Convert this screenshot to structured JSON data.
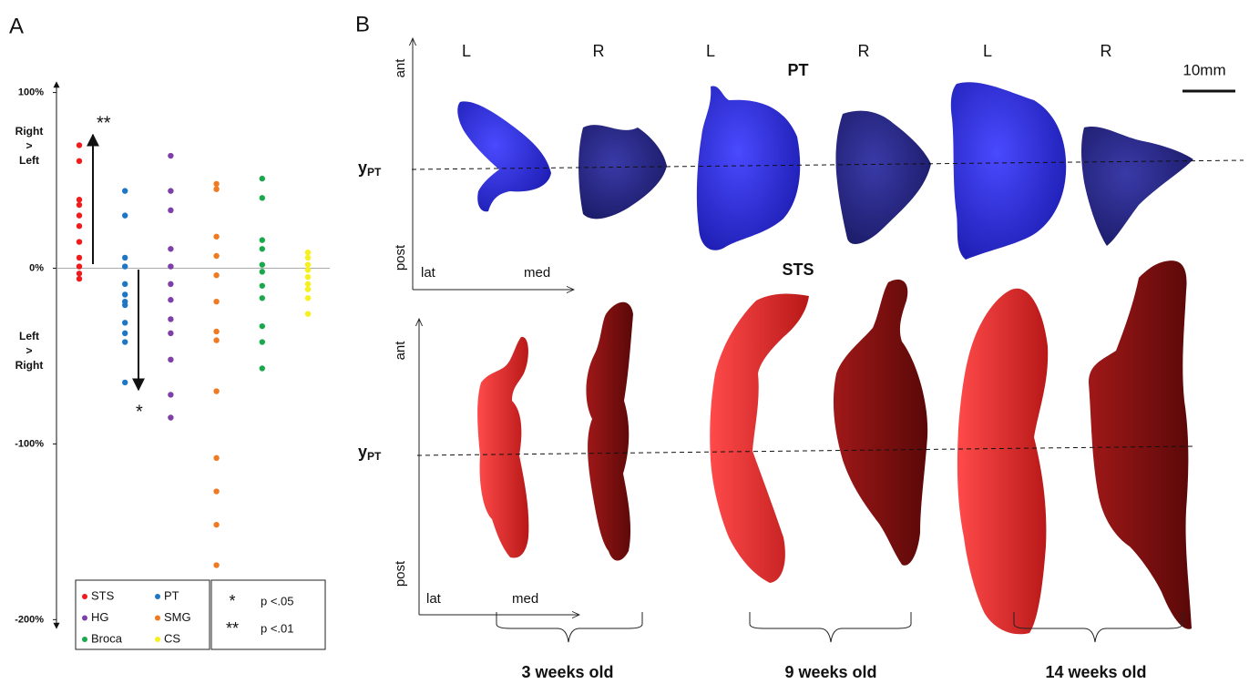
{
  "chart_data": {
    "type": "strip",
    "panel_label": "A",
    "ylim": [
      -205,
      106
    ],
    "yticks": [
      {
        "value": 100,
        "label": "100%"
      },
      {
        "value": 0,
        "label": "0%"
      },
      {
        "value": -100,
        "label": "-100%"
      },
      {
        "value": -200,
        "label": "-200%"
      }
    ],
    "upper_label": [
      "Right",
      ">",
      "Left"
    ],
    "lower_label": [
      "Left",
      ">",
      "Right"
    ],
    "annotations": [
      "**",
      "*"
    ],
    "series": [
      {
        "name": "STS",
        "color": "#ee1c1c",
        "values": [
          70,
          61,
          39,
          36,
          30,
          24,
          15,
          6,
          1,
          -3,
          -6
        ]
      },
      {
        "name": "PT",
        "color": "#1f77c4",
        "values": [
          44,
          30,
          6,
          1,
          -9,
          -15,
          -19,
          -21,
          -31,
          -37,
          -42,
          -65
        ]
      },
      {
        "name": "HG",
        "color": "#7e3fa8",
        "values": [
          64,
          44,
          33,
          11,
          1,
          -9,
          -18,
          -29,
          -37,
          -52,
          -72,
          -85
        ]
      },
      {
        "name": "SMG",
        "color": "#f07a22",
        "values": [
          48,
          45,
          18,
          7,
          -4,
          -19,
          -36,
          -41,
          -70,
          -108,
          -127,
          -146,
          -169
        ]
      },
      {
        "name": "Broca",
        "color": "#1aa84c",
        "values": [
          51,
          40,
          16,
          11,
          2,
          -2,
          -10,
          -17,
          -33,
          -42,
          -57
        ]
      },
      {
        "name": "CS",
        "color": "#f5f01e",
        "values": [
          9,
          6,
          2,
          -1,
          -5,
          -9,
          -12,
          -17,
          -26
        ]
      }
    ],
    "significance": [
      {
        "symbol": "*",
        "label": "p <.05"
      },
      {
        "symbol": "**",
        "label": "p <.01"
      }
    ]
  },
  "panel_b": {
    "label": "B",
    "columns": [
      "L",
      "R",
      "L",
      "R",
      "L",
      "R"
    ],
    "scale_bar": "10mm",
    "pt": {
      "title": "PT",
      "ant": "ant",
      "post": "post",
      "lat": "lat",
      "med": "med",
      "line_label": {
        "main": "y",
        "sub": "PT"
      }
    },
    "sts": {
      "title": "STS",
      "ant": "ant",
      "post": "post",
      "lat": "lat",
      "med": "med",
      "line_label": {
        "main": "y",
        "sub": "PT"
      }
    },
    "ages": [
      "3 weeks old",
      "9 weeks old",
      "14 weeks old"
    ]
  }
}
